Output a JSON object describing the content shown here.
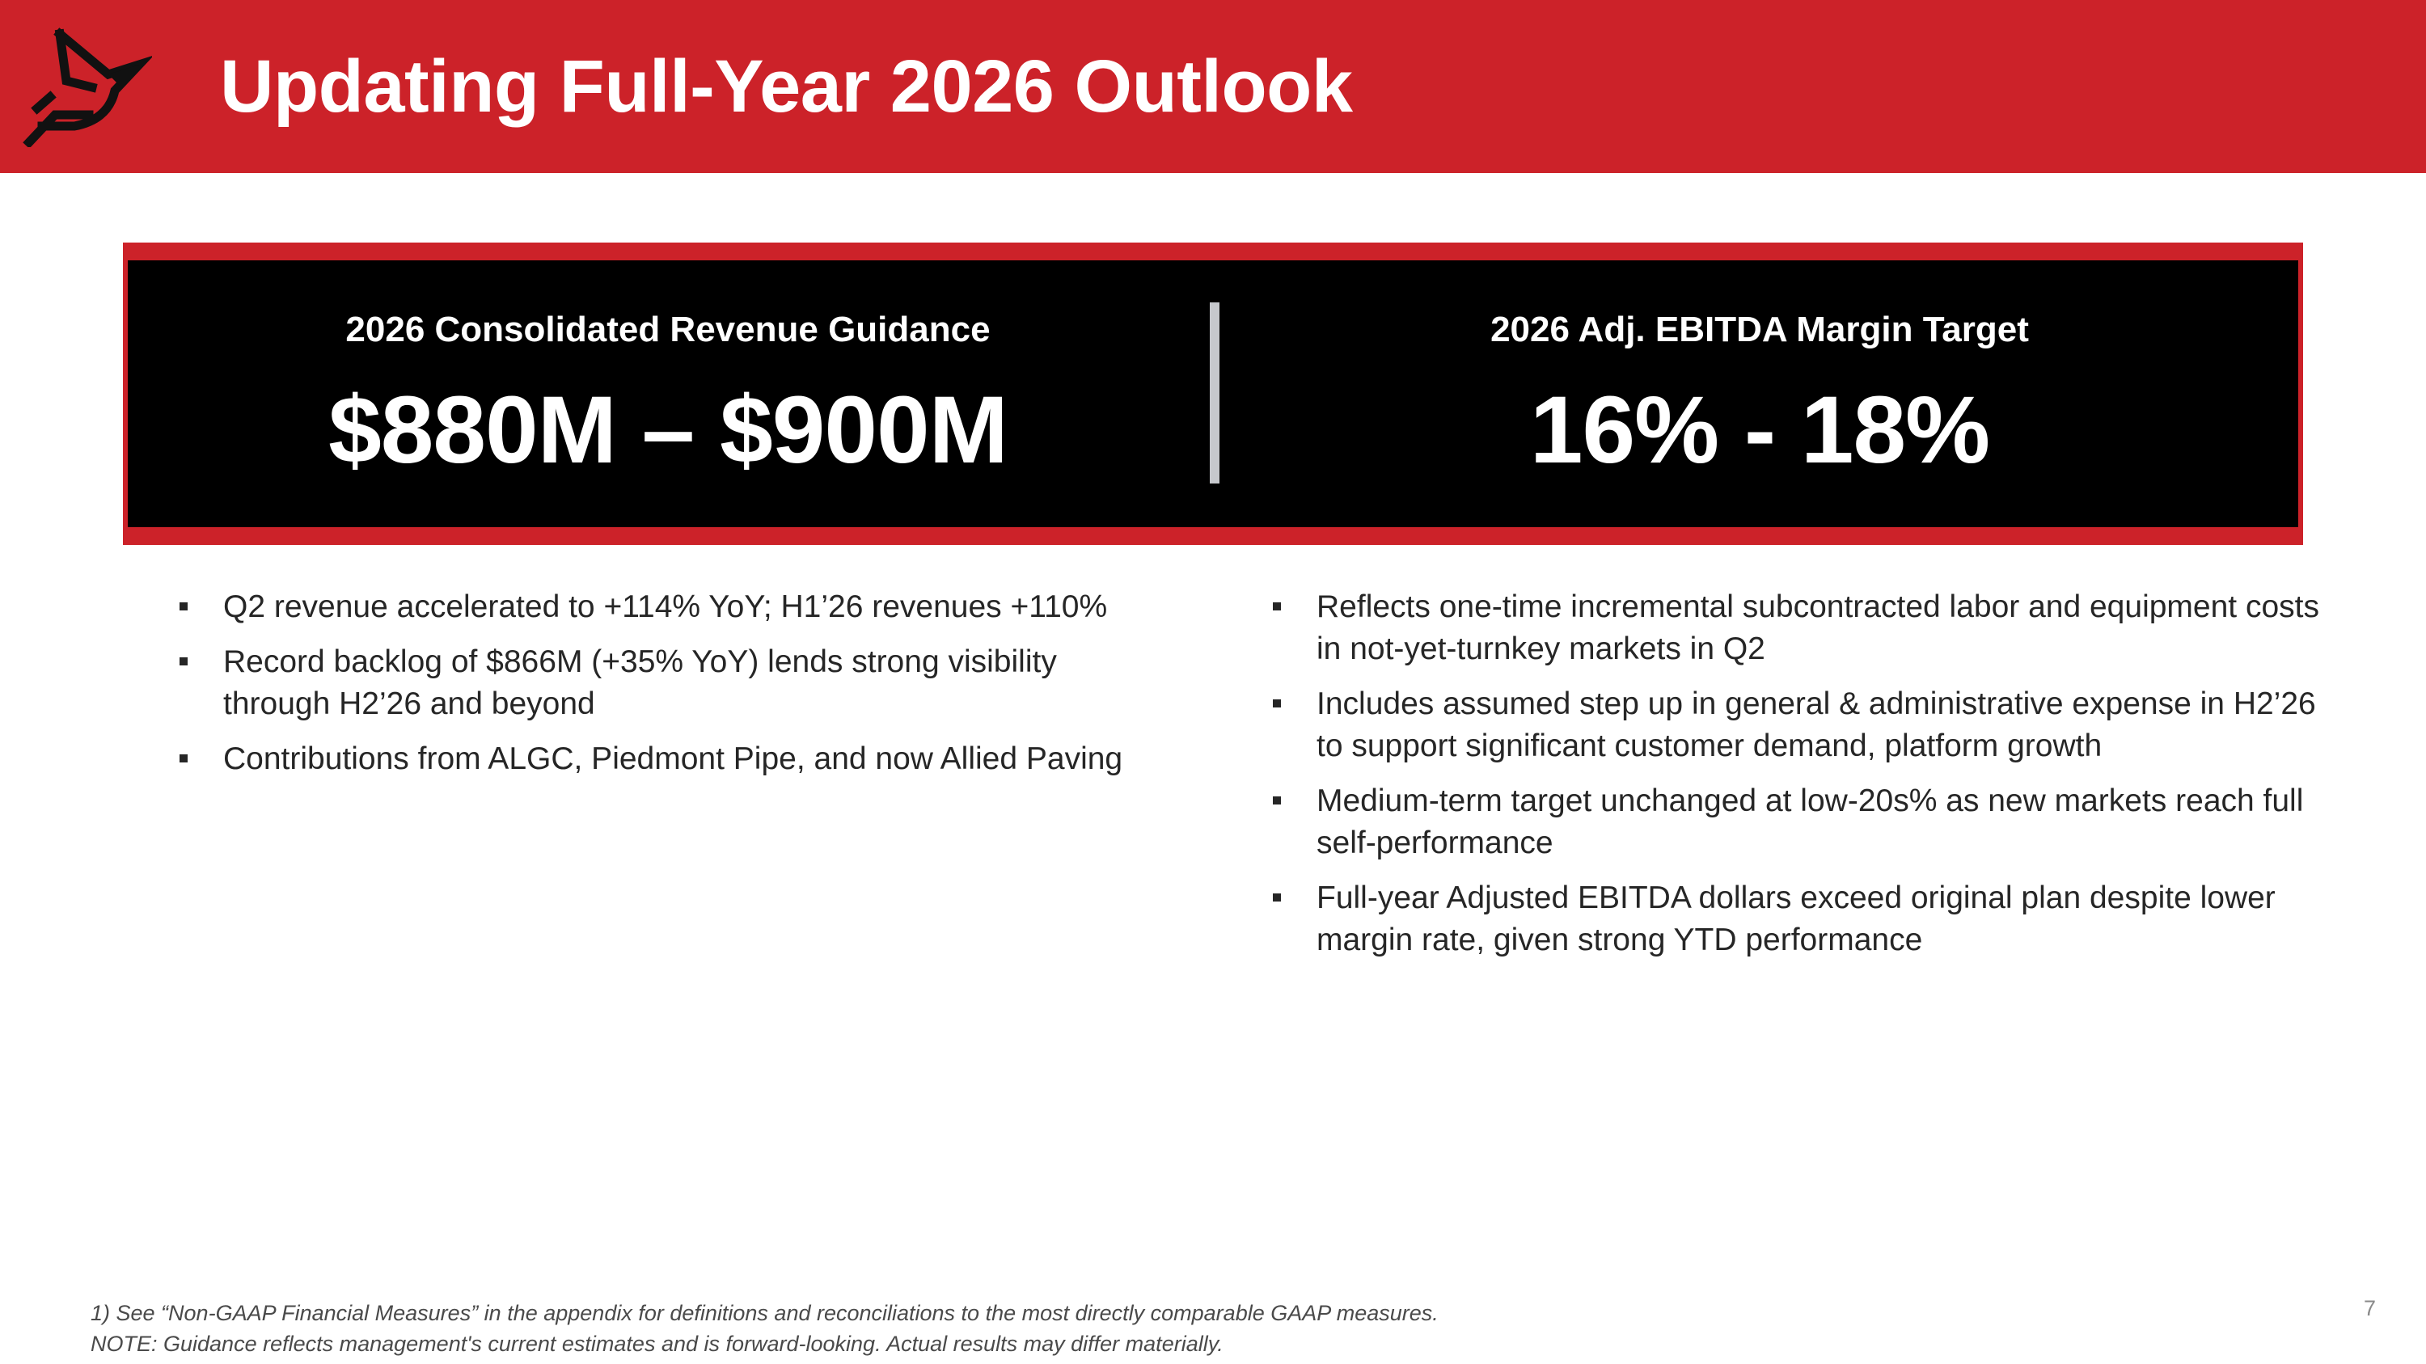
{
  "header": {
    "title": "Updating Full-Year 2026 Outlook",
    "background_color": "#cc2229",
    "logo_icon": "cardinal-bird-icon"
  },
  "guidance": {
    "revenue": {
      "label": "2026 Consolidated Revenue Guidance",
      "value": "$880M – $900M"
    },
    "ebitda": {
      "label": "2026 Adj. EBITDA Margin Target",
      "value": "16% - 18%"
    },
    "box_color": "#000000",
    "accent_color": "#cc2229"
  },
  "bullets_left": [
    "Q2 revenue accelerated to +114% YoY; H1’26 revenues +110%",
    "Record backlog of $866M (+35% YoY) lends strong visibility through H2’26 and beyond",
    "Contributions from ALGC, Piedmont Pipe, and now Allied Paving"
  ],
  "bullets_right": [
    "Reflects one-time incremental subcontracted labor and equipment costs in not-yet-turnkey markets in Q2",
    "Includes assumed step up in general & administrative expense in H2’26 to support significant customer demand, platform growth",
    "Medium-term target unchanged at low-20s% as new markets reach full self-performance",
    "Full-year Adjusted EBITDA dollars exceed original plan despite lower margin rate, given strong YTD performance"
  ],
  "footer": {
    "note_1": "1) See “Non-GAAP Financial Measures” in the appendix for definitions and reconciliations to the most directly comparable GAAP measures.",
    "note_2": "NOTE: Guidance reflects management's current estimates and is forward-looking. Actual results may differ materially.",
    "page_number": "7"
  }
}
